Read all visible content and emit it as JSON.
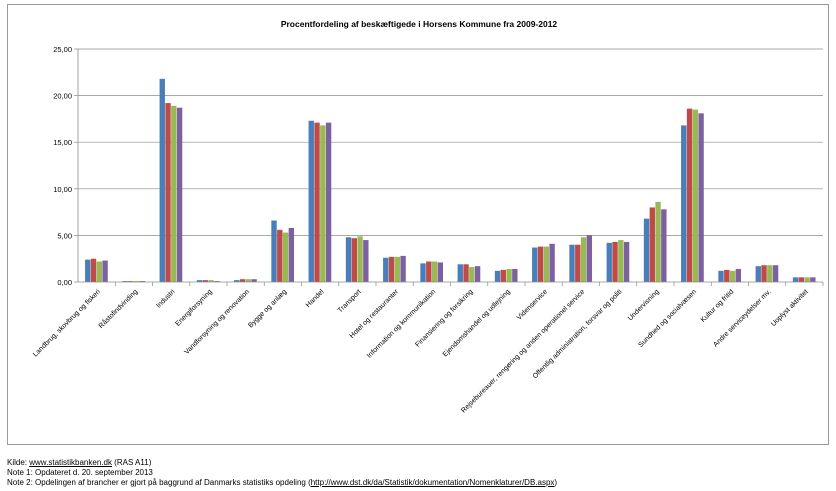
{
  "chart_data": {
    "type": "bar",
    "title": "Procentfordeling af beskæftigede i Horsens Kommune fra 2009-2012",
    "xlabel": "",
    "ylabel": "",
    "ylim": [
      0,
      25
    ],
    "ytick_labels": [
      "0,00",
      "5,00",
      "10,00",
      "15,00",
      "20,00",
      "25,00"
    ],
    "grid": true,
    "legend": "none",
    "categories": [
      "Landbrug, skovbrug og fiskeri",
      "Råstofindvinding",
      "Industri",
      "Energiforsyning",
      "Vandforsyning og renovation",
      "Bygge og anlæg",
      "Handel",
      "Transport",
      "Hotel og restauranter",
      "Information og kommunikation",
      "Finansiering og forsikring",
      "Ejendomshandel og udlejning",
      "Videnservice",
      "Rejsebureauer, rengøring og anden operationel service",
      "Offentlig administration, forsvar og politi",
      "Undervisning",
      "Sundhed og socialvæsen",
      "Kultur og fritid",
      "Andre serviceydelser mv.",
      "Uoplyst aktivitet"
    ],
    "series": [
      {
        "color": "#4a7ebb",
        "values": [
          2.4,
          0.1,
          21.8,
          0.2,
          0.2,
          6.6,
          17.3,
          4.8,
          2.6,
          2.0,
          1.9,
          1.2,
          3.7,
          4.0,
          4.2,
          6.8,
          16.8,
          1.2,
          1.7,
          0.5
        ]
      },
      {
        "color": "#be4b48",
        "values": [
          2.5,
          0.1,
          19.2,
          0.2,
          0.3,
          5.6,
          17.1,
          4.7,
          2.7,
          2.2,
          1.9,
          1.3,
          3.8,
          4.0,
          4.3,
          8.0,
          18.6,
          1.3,
          1.8,
          0.5
        ]
      },
      {
        "color": "#98b954",
        "values": [
          2.2,
          0.1,
          18.9,
          0.2,
          0.3,
          5.3,
          16.8,
          4.9,
          2.7,
          2.2,
          1.6,
          1.4,
          3.8,
          4.8,
          4.5,
          8.6,
          18.5,
          1.2,
          1.8,
          0.5
        ]
      },
      {
        "color": "#7d60a0",
        "values": [
          2.3,
          0.1,
          18.7,
          0.1,
          0.3,
          5.8,
          17.1,
          4.5,
          2.8,
          2.1,
          1.7,
          1.4,
          4.1,
          5.0,
          4.3,
          7.8,
          18.1,
          1.4,
          1.8,
          0.5
        ]
      }
    ]
  },
  "notes": {
    "source_prefix": "Kilde: ",
    "source_link": "www.statistikbanken.dk",
    "source_suffix": " (RAS A11)",
    "note1": "Note 1: Opdateret d. 20. september 2013",
    "note2_prefix": "Note 2: Opdelingen af brancher er gjort på baggrund af Danmarks statistiks opdeling (",
    "note2_link": "http://www.dst.dk/da/Statistik/dokumentation/Nomenklaturer/DB.aspx",
    "note2_suffix": ")"
  }
}
